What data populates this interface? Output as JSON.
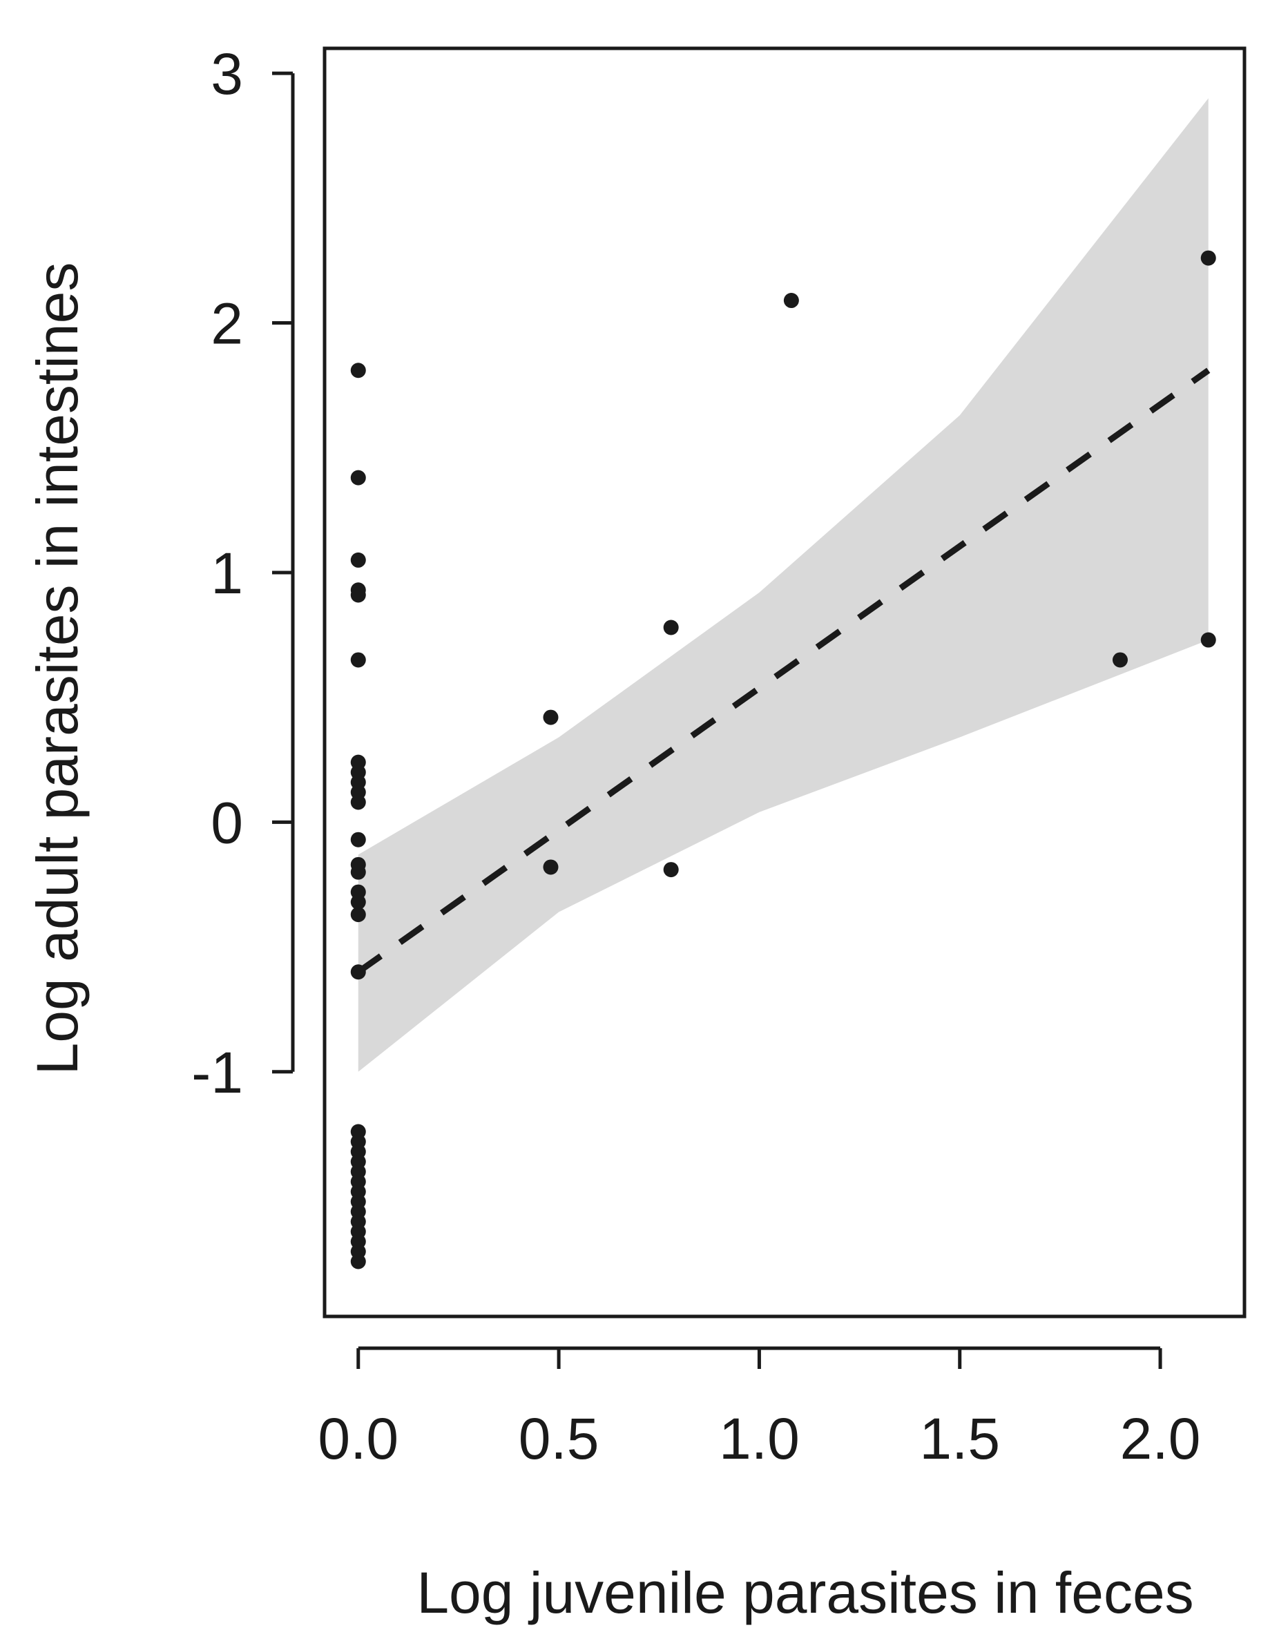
{
  "chart_data": {
    "type": "scatter",
    "title": "",
    "xlabel": "Log juvenile parasites in feces",
    "ylabel": "Log adult parasites in intestines",
    "xlim": [
      -0.084,
      2.21
    ],
    "ylim": [
      -1.98,
      3.1
    ],
    "x_ticks": [
      0.0,
      0.5,
      1.0,
      1.5,
      2.0
    ],
    "x_tick_labels": [
      "0.0",
      "0.5",
      "1.0",
      "1.5",
      "2.0"
    ],
    "y_ticks": [
      -1,
      0,
      1,
      2,
      3
    ],
    "y_tick_labels": [
      "-1",
      "0",
      "1",
      "2",
      "3"
    ],
    "grid": false,
    "legend": "none",
    "points": [
      {
        "x": 0.0,
        "y": 1.81
      },
      {
        "x": 0.0,
        "y": 1.38
      },
      {
        "x": 0.0,
        "y": 1.05
      },
      {
        "x": 0.0,
        "y": 0.93
      },
      {
        "x": 0.0,
        "y": 0.91
      },
      {
        "x": 0.0,
        "y": 0.65
      },
      {
        "x": 0.0,
        "y": 0.24
      },
      {
        "x": 0.0,
        "y": 0.2
      },
      {
        "x": 0.0,
        "y": 0.16
      },
      {
        "x": 0.0,
        "y": 0.12
      },
      {
        "x": 0.0,
        "y": 0.08
      },
      {
        "x": 0.0,
        "y": -0.07
      },
      {
        "x": 0.0,
        "y": -0.17
      },
      {
        "x": 0.0,
        "y": -0.2
      },
      {
        "x": 0.0,
        "y": -0.28
      },
      {
        "x": 0.0,
        "y": -0.32
      },
      {
        "x": 0.0,
        "y": -0.37
      },
      {
        "x": 0.0,
        "y": -0.6
      },
      {
        "x": 0.0,
        "y": -1.24
      },
      {
        "x": 0.0,
        "y": -1.28
      },
      {
        "x": 0.0,
        "y": -1.32
      },
      {
        "x": 0.0,
        "y": -1.36
      },
      {
        "x": 0.0,
        "y": -1.4
      },
      {
        "x": 0.0,
        "y": -1.44
      },
      {
        "x": 0.0,
        "y": -1.48
      },
      {
        "x": 0.0,
        "y": -1.52
      },
      {
        "x": 0.0,
        "y": -1.56
      },
      {
        "x": 0.0,
        "y": -1.6
      },
      {
        "x": 0.0,
        "y": -1.64
      },
      {
        "x": 0.0,
        "y": -1.68
      },
      {
        "x": 0.0,
        "y": -1.72
      },
      {
        "x": 0.0,
        "y": -1.76
      },
      {
        "x": 0.48,
        "y": 0.42
      },
      {
        "x": 0.48,
        "y": -0.18
      },
      {
        "x": 0.78,
        "y": 0.78
      },
      {
        "x": 0.78,
        "y": -0.19
      },
      {
        "x": 1.08,
        "y": 2.09
      },
      {
        "x": 1.9,
        "y": 0.65
      },
      {
        "x": 2.12,
        "y": 2.26
      },
      {
        "x": 2.12,
        "y": 0.73
      }
    ],
    "fit_line": {
      "style": "dashed",
      "x": [
        0.0,
        2.12
      ],
      "y": [
        -0.6,
        1.81
      ]
    },
    "confidence_band": {
      "color": "#d9d9d9",
      "x": [
        0.0,
        0.5,
        1.0,
        1.5,
        2.12
      ],
      "upper": [
        -0.13,
        0.34,
        0.92,
        1.63,
        2.9
      ],
      "lower": [
        -1.0,
        -0.36,
        0.04,
        0.34,
        0.73
      ]
    },
    "colors": {
      "points": "#1a1a1a",
      "line": "#1a1a1a",
      "frame": "#1a1a1a"
    }
  }
}
